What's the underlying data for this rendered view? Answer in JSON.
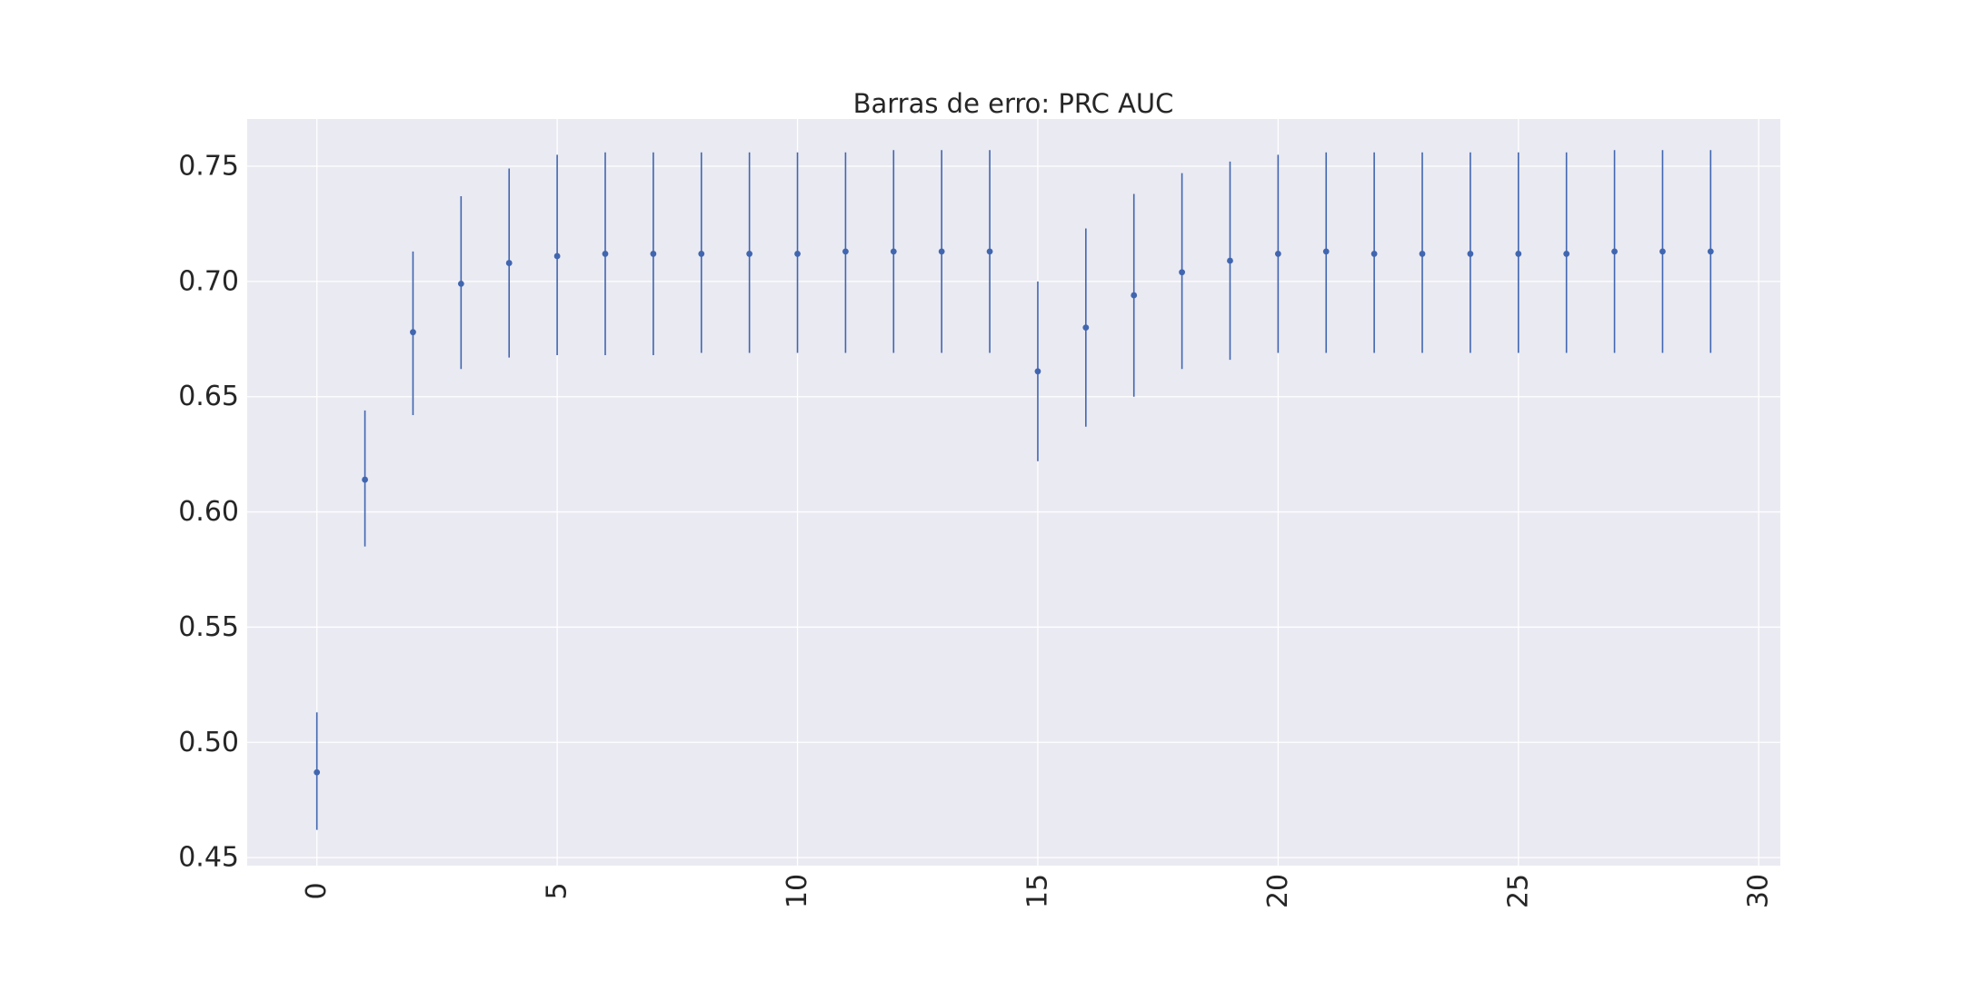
{
  "chart_data": {
    "type": "scatter",
    "title": "Barras de erro: PRC AUC",
    "xlabel": "",
    "ylabel": "",
    "xlim": [
      -1.45,
      30.45
    ],
    "ylim": [
      0.4465,
      0.7705
    ],
    "x_ticks": [
      0,
      5,
      10,
      15,
      20,
      25,
      30
    ],
    "y_ticks": [
      0.45,
      0.5,
      0.55,
      0.6,
      0.65,
      0.7,
      0.75
    ],
    "x_tick_labels": [
      "0",
      "5",
      "10",
      "15",
      "20",
      "25",
      "30"
    ],
    "y_tick_labels": [
      "0.45",
      "0.50",
      "0.55",
      "0.60",
      "0.65",
      "0.70",
      "0.75"
    ],
    "grid": true,
    "style": "seaborn-darkgrid",
    "colors": {
      "series": "#4166b0",
      "plot_background": "#eaeaf2",
      "grid": "#ffffff"
    },
    "series": [
      {
        "x": [
          0,
          1,
          2,
          3,
          4,
          5,
          6,
          7,
          8,
          9,
          10,
          11,
          12,
          13,
          14,
          15,
          16,
          17,
          18,
          19,
          20,
          21,
          22,
          23,
          24,
          25,
          26,
          27,
          28,
          29
        ],
        "y": [
          0.487,
          0.614,
          0.678,
          0.699,
          0.708,
          0.711,
          0.712,
          0.712,
          0.712,
          0.712,
          0.712,
          0.713,
          0.713,
          0.713,
          0.713,
          0.661,
          0.68,
          0.694,
          0.704,
          0.709,
          0.712,
          0.713,
          0.712,
          0.712,
          0.712,
          0.712,
          0.712,
          0.713,
          0.713,
          0.713
        ],
        "y_low": [
          0.462,
          0.585,
          0.642,
          0.662,
          0.667,
          0.668,
          0.668,
          0.668,
          0.669,
          0.669,
          0.669,
          0.669,
          0.669,
          0.669,
          0.669,
          0.622,
          0.637,
          0.65,
          0.662,
          0.666,
          0.669,
          0.669,
          0.669,
          0.669,
          0.669,
          0.669,
          0.669,
          0.669,
          0.669,
          0.669
        ],
        "y_high": [
          0.513,
          0.644,
          0.713,
          0.737,
          0.749,
          0.755,
          0.756,
          0.756,
          0.756,
          0.756,
          0.756,
          0.756,
          0.757,
          0.757,
          0.757,
          0.7,
          0.723,
          0.738,
          0.747,
          0.752,
          0.755,
          0.756,
          0.756,
          0.756,
          0.756,
          0.756,
          0.756,
          0.757,
          0.757,
          0.757
        ]
      }
    ]
  }
}
